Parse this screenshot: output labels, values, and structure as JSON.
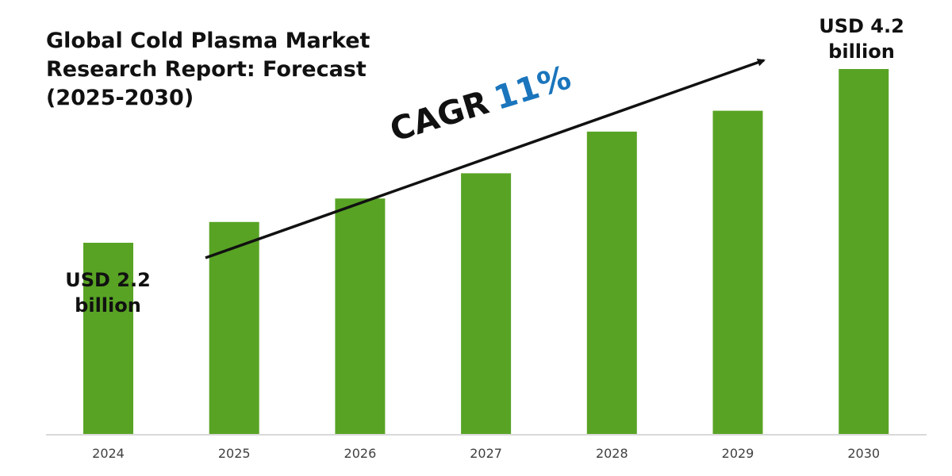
{
  "chart_data": {
    "type": "bar",
    "title_lines": [
      "Global Cold Plasma Market",
      "Research Report: Forecast",
      "(2025-2030)"
    ],
    "categories": [
      "2024",
      "2025",
      "2026",
      "2027",
      "2028",
      "2029",
      "2030"
    ],
    "values": [
      2.2,
      2.44,
      2.71,
      3.0,
      3.48,
      3.72,
      4.2
    ],
    "ylim": [
      0,
      4.2
    ],
    "bar_color": "#58a324",
    "axis_color": "#d9d9d9",
    "grid": false,
    "annotations": {
      "start": {
        "line1": "USD 2.2",
        "line2": "billion"
      },
      "end": {
        "line1": "USD 4.2",
        "line2": "billion"
      },
      "cagr_label": "CAGR",
      "cagr_value": "11%",
      "cagr_color": "#1a75bc"
    }
  }
}
